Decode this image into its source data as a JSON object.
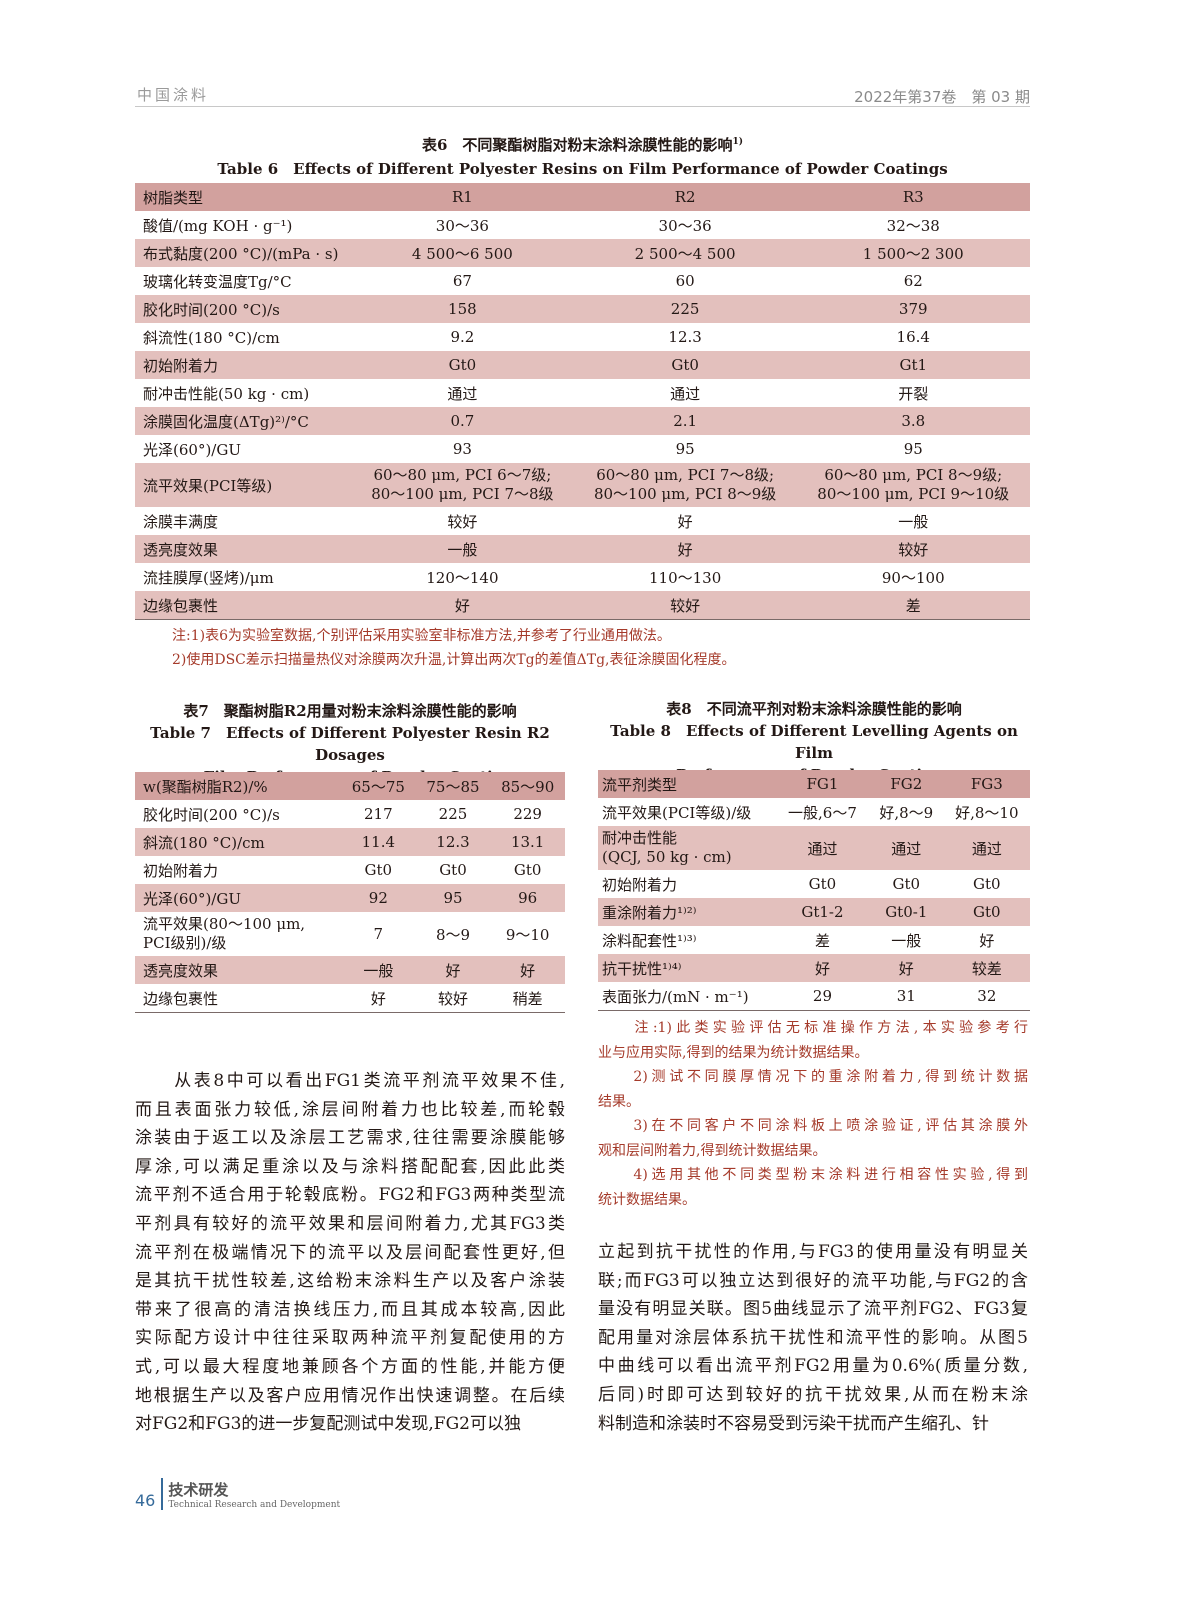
{
  "header": {
    "journal": "中国涂料",
    "issue": "2022年第37卷　第 03 期"
  },
  "table6": {
    "title_cn": "表6　不同聚酯树脂对粉末涂料涂膜性能的影响",
    "title_sup": "1)",
    "title_en": "Table 6　Effects of Different Polyester Resins on Film Performance of Powder Coatings",
    "header": [
      "树脂类型",
      "R1",
      "R2",
      "R3"
    ],
    "rows": [
      [
        "酸值/(mg KOH · g⁻¹)",
        "30～36",
        "30～36",
        "32～38"
      ],
      [
        "布式黏度(200 °C)/(mPa · s)",
        "4 500～6 500",
        "2 500～4 500",
        "1 500～2 300"
      ],
      [
        "玻璃化转变温度Tg/°C",
        "67",
        "60",
        "62"
      ],
      [
        "胶化时间(200 °C)/s",
        "158",
        "225",
        "379"
      ],
      [
        "斜流性(180 °C)/cm",
        "9.2",
        "12.3",
        "16.4"
      ],
      [
        "初始附着力",
        "Gt0",
        "Gt0",
        "Gt1"
      ],
      [
        "耐冲击性能(50 kg · cm)",
        "通过",
        "通过",
        "开裂"
      ],
      [
        "涂膜固化温度(ΔTg)²⁾/°C",
        "0.7",
        "2.1",
        "3.8"
      ],
      [
        "光泽(60°)/GU",
        "93",
        "95",
        "95"
      ],
      [
        "流平效果(PCI等级)",
        "60～80 μm, PCI 6～7级;\n80～100 μm, PCI 7～8级",
        "60～80 μm, PCI 7～8级;\n80～100 μm, PCI 8～9级",
        "60～80 μm, PCI 8～9级;\n80～100 μm, PCI 9～10级"
      ],
      [
        "涂膜丰满度",
        "较好",
        "好",
        "一般"
      ],
      [
        "透亮度效果",
        "一般",
        "好",
        "较好"
      ],
      [
        "流挂膜厚(竖烤)/μm",
        "120～140",
        "110～130",
        "90～100"
      ],
      [
        "边缘包裹性",
        "好",
        "较好",
        "差"
      ]
    ],
    "notes": [
      "注:1)表6为实验室数据,个别评估采用实验室非标准方法,并参考了行业通用做法。",
      "2)使用DSC差示扫描量热仪对涂膜两次升温,计算出两次Tg的差值ΔTg,表征涂膜固化程度。"
    ]
  },
  "table7": {
    "title_cn": "表7　聚酯树脂R2用量对粉末涂料涂膜性能的影响",
    "title_en": [
      "Table 7　Effects of Different Polyester Resin R2 Dosages",
      "on Film Performance of Powder Coatings"
    ],
    "header": [
      "w(聚酯树脂R2)/%",
      "65～75",
      "75～85",
      "85～90"
    ],
    "rows": [
      [
        "胶化时间(200 °C)/s",
        "217",
        "225",
        "229"
      ],
      [
        "斜流(180 °C)/cm",
        "11.4",
        "12.3",
        "13.1"
      ],
      [
        "初始附着力",
        "Gt0",
        "Gt0",
        "Gt0"
      ],
      [
        "光泽(60°)/GU",
        "92",
        "95",
        "96"
      ],
      [
        "流平效果(80～100 μm,\nPCI级别)/级",
        "7",
        "8～9",
        "9～10"
      ],
      [
        "透亮度效果",
        "一般",
        "好",
        "好"
      ],
      [
        "边缘包裹性",
        "好",
        "较好",
        "稍差"
      ]
    ]
  },
  "table8": {
    "title_cn": "表8　不同流平剂对粉末涂料涂膜性能的影响",
    "title_en": [
      "Table 8　Effects of Different Levelling Agents on Film",
      "Performance of Powder Coatings"
    ],
    "header": [
      "流平剂类型",
      "FG1",
      "FG2",
      "FG3"
    ],
    "rows": [
      [
        "流平效果(PCI等级)/级",
        "一般,6～7",
        "好,8～9",
        "好,8～10"
      ],
      [
        "耐冲击性能\n(QCJ, 50 kg · cm)",
        "通过",
        "通过",
        "通过"
      ],
      [
        "初始附着力",
        "Gt0",
        "Gt0",
        "Gt0"
      ],
      [
        "重涂附着力¹⁾²⁾",
        "Gt1-2",
        "Gt0-1",
        "Gt0"
      ],
      [
        "涂料配套性¹⁾³⁾",
        "差",
        "一般",
        "好"
      ],
      [
        "抗干扰性¹⁾⁴⁾",
        "好",
        "好",
        "较差"
      ],
      [
        "表面张力/(mN · m⁻¹)",
        "29",
        "31",
        "32"
      ]
    ],
    "notes": [
      "　　注:1)此类实验评估无标准操作方法,本实验参考行",
      "业与应用实际,得到的结果为统计数据结果。",
      "　　2)测试不同膜厚情况下的重涂附着力,得到统计数据",
      "结果。",
      "　　3)在不同客户不同涂料板上喷涂验证,评估其涂膜外",
      "观和层间附着力,得到统计数据结果。",
      "　　4)选用其他不同类型粉末涂料进行相容性实验,得到",
      "统计数据结果。"
    ]
  },
  "body_left": [
    "　　从表8中可以看出FG1类流平剂流平效果不佳,",
    "而且表面张力较低,涂层间附着力也比较差,而轮毂",
    "涂装由于返工以及涂层工艺需求,往往需要涂膜能够",
    "厚涂,可以满足重涂以及与涂料搭配配套,因此此类",
    "流平剂不适合用于轮毂底粉。FG2和FG3两种类型流",
    "平剂具有较好的流平效果和层间附着力,尤其FG3类",
    "流平剂在极端情况下的流平以及层间配套性更好,但",
    "是其抗干扰性较差,这给粉末涂料生产以及客户涂装",
    "带来了很高的清洁换线压力,而且其成本较高,因此",
    "实际配方设计中往往采取两种流平剂复配使用的方",
    "式,可以最大程度地兼顾各个方面的性能,并能方便",
    "地根据生产以及客户应用情况作出快速调整。在后续",
    "对FG2和FG3的进一步复配测试中发现,FG2可以独"
  ],
  "body_right": [
    "立起到抗干扰性的作用,与FG3的使用量没有明显关",
    "联;而FG3可以独立达到很好的流平功能,与FG2的含",
    "量没有明显关联。图5曲线显示了流平剂FG2、FG3复",
    "配用量对涂层体系抗干扰性和流平性的影响。从图5",
    "中曲线可以看出流平剂FG2用量为0.6%(质量分数,",
    "后同)时即可达到较好的抗干扰效果,从而在粉末涂",
    "料制造和涂装时不容易受到污染干扰而产生缩孔、针"
  ],
  "footer": {
    "page": "46",
    "section_cn": "技术研发",
    "section_en": "Technical Research and Development"
  },
  "colors": {
    "header_row": "#d2a19e",
    "shaded_row": "#e3c0bd",
    "note_text": "#a53a2a",
    "accent": "#356a9a"
  }
}
